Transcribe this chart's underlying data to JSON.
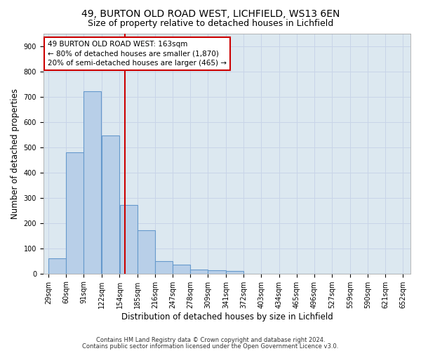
{
  "title1": "49, BURTON OLD ROAD WEST, LICHFIELD, WS13 6EN",
  "title2": "Size of property relative to detached houses in Lichfield",
  "xlabel": "Distribution of detached houses by size in Lichfield",
  "ylabel": "Number of detached properties",
  "bar_left_edges": [
    29,
    60,
    91,
    122,
    154,
    185,
    216,
    247,
    278,
    309,
    341,
    372,
    403,
    434,
    465,
    496,
    527,
    559,
    590,
    621
  ],
  "bar_widths": [
    31,
    31,
    31,
    32,
    31,
    31,
    31,
    31,
    31,
    32,
    31,
    31,
    31,
    31,
    31,
    31,
    32,
    31,
    31,
    31
  ],
  "bar_heights": [
    60,
    480,
    720,
    545,
    270,
    170,
    50,
    35,
    15,
    12,
    10,
    0,
    0,
    0,
    0,
    0,
    0,
    0,
    0,
    0
  ],
  "bar_color": "#b8cfe8",
  "bar_edge_color": "#6699cc",
  "bar_edge_width": 0.8,
  "red_line_x": 163,
  "red_line_color": "#cc0000",
  "annotation_line1": "49 BURTON OLD ROAD WEST: 163sqm",
  "annotation_line2": "← 80% of detached houses are smaller (1,870)",
  "annotation_line3": "20% of semi-detached houses are larger (465) →",
  "ylim": [
    0,
    950
  ],
  "yticks": [
    0,
    100,
    200,
    300,
    400,
    500,
    600,
    700,
    800,
    900
  ],
  "xtick_labels": [
    "29sqm",
    "60sqm",
    "91sqm",
    "122sqm",
    "154sqm",
    "185sqm",
    "216sqm",
    "247sqm",
    "278sqm",
    "309sqm",
    "341sqm",
    "372sqm",
    "403sqm",
    "434sqm",
    "465sqm",
    "496sqm",
    "527sqm",
    "559sqm",
    "590sqm",
    "621sqm",
    "652sqm"
  ],
  "xtick_positions": [
    29,
    60,
    91,
    122,
    154,
    185,
    216,
    247,
    278,
    309,
    341,
    372,
    403,
    434,
    465,
    496,
    527,
    559,
    590,
    621,
    652
  ],
  "xlim": [
    20,
    665
  ],
  "grid_color": "#c8d4e8",
  "background_color": "#dce8f0",
  "footer_line1": "Contains HM Land Registry data © Crown copyright and database right 2024.",
  "footer_line2": "Contains public sector information licensed under the Open Government Licence v3.0.",
  "title1_fontsize": 10,
  "title2_fontsize": 9,
  "xlabel_fontsize": 8.5,
  "ylabel_fontsize": 8.5,
  "annotation_fontsize": 7.5,
  "tick_fontsize": 7,
  "footer_fontsize": 6
}
